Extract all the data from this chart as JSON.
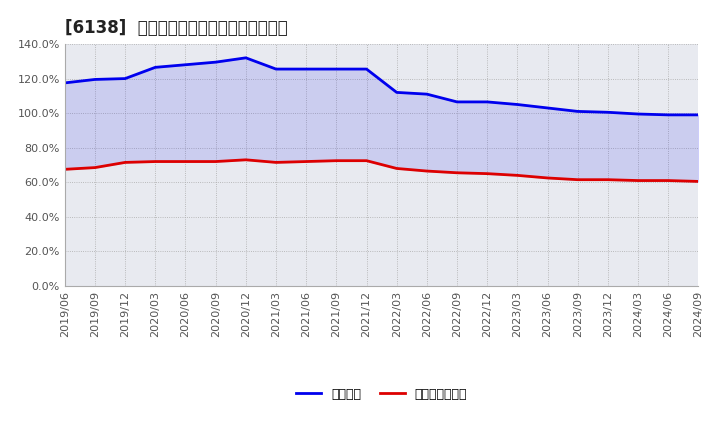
{
  "title": "[6138]  固定比率、固定長期適合率の推移",
  "x_labels": [
    "2019/06",
    "2019/09",
    "2019/12",
    "2020/03",
    "2020/06",
    "2020/09",
    "2020/12",
    "2021/03",
    "2021/06",
    "2021/09",
    "2021/12",
    "2022/03",
    "2022/06",
    "2022/09",
    "2022/12",
    "2023/03",
    "2023/06",
    "2023/09",
    "2023/12",
    "2024/03",
    "2024/06",
    "2024/09"
  ],
  "fixed_ratio": [
    117.5,
    119.5,
    120.0,
    126.5,
    128.0,
    129.5,
    132.0,
    125.5,
    125.5,
    125.5,
    125.5,
    112.0,
    111.0,
    106.5,
    106.5,
    105.0,
    103.0,
    101.0,
    100.5,
    99.5,
    99.0,
    99.0
  ],
  "fixed_long_ratio": [
    67.5,
    68.5,
    71.5,
    72.0,
    72.0,
    72.0,
    73.0,
    71.5,
    72.0,
    72.5,
    72.5,
    68.0,
    66.5,
    65.5,
    65.0,
    64.0,
    62.5,
    61.5,
    61.5,
    61.0,
    61.0,
    60.5
  ],
  "blue_color": "#0000ee",
  "red_color": "#dd0000",
  "background_color": "#ffffff",
  "plot_bg_color": "#e8e8e8",
  "grid_color": "#999999",
  "ylim": [
    0,
    140
  ],
  "yticks": [
    0,
    20,
    40,
    60,
    80,
    100,
    120,
    140
  ],
  "legend_fixed": "固定比率",
  "legend_fixed_long": "固定長期適合率",
  "title_fontsize": 12,
  "tick_fontsize": 8,
  "legend_fontsize": 9
}
